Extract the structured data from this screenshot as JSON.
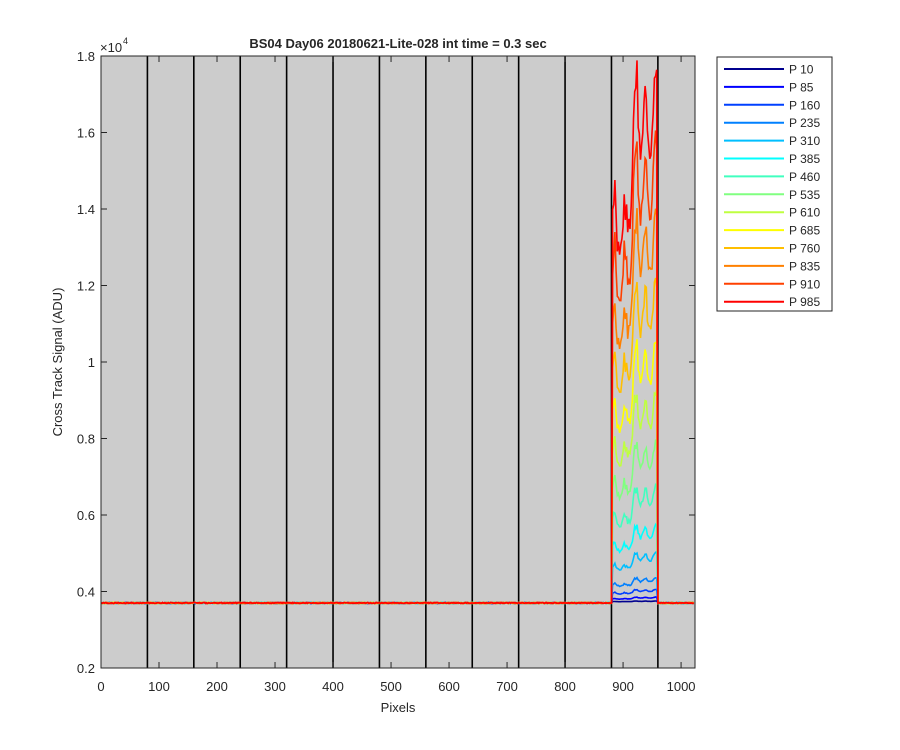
{
  "chart_data": {
    "type": "line",
    "title": "BS04 Day06 20180621-Lite-028 int time = 0.3 sec",
    "xlabel": "Pixels",
    "ylabel": "Cross Track Signal (ADU)",
    "y_exponent_label": "×10",
    "y_exponent_power": "4",
    "xlim": [
      0,
      1024
    ],
    "ylim": [
      2000,
      18000
    ],
    "x_ticks": [
      0,
      100,
      200,
      300,
      400,
      500,
      600,
      700,
      800,
      900,
      1000
    ],
    "x_tick_labels": [
      "0",
      "100",
      "200",
      "300",
      "400",
      "500",
      "600",
      "700",
      "800",
      "900",
      "1000"
    ],
    "y_ticks": [
      2000,
      4000,
      6000,
      8000,
      10000,
      12000,
      14000,
      16000,
      18000
    ],
    "y_tick_labels": [
      "0.2",
      "0.4",
      "0.6",
      "0.8",
      "1",
      "1.2",
      "1.4",
      "1.6",
      "1.8"
    ],
    "plot_background": "#cccccc",
    "legend_position": "outside-top-right",
    "vertical_lines": [
      80,
      160,
      240,
      320,
      400,
      480,
      560,
      640,
      720,
      800,
      880,
      960
    ],
    "vertical_line_color": "#000000",
    "baseline": 3700,
    "signal_start": 880,
    "signal_end": 960,
    "series": [
      {
        "name": "P 10",
        "color": "#00008f",
        "peak": 3750
      },
      {
        "name": "P 85",
        "color": "#0000ff",
        "peak": 3850
      },
      {
        "name": "P 160",
        "color": "#0040ff",
        "peak": 4050
      },
      {
        "name": "P 235",
        "color": "#0080ff",
        "peak": 4350
      },
      {
        "name": "P 310",
        "color": "#00bfff",
        "peak": 5000
      },
      {
        "name": "P 385",
        "color": "#00ffff",
        "peak": 5700
      },
      {
        "name": "P 460",
        "color": "#40ffbf",
        "peak": 6700
      },
      {
        "name": "P 535",
        "color": "#80ff80",
        "peak": 7800
      },
      {
        "name": "P 610",
        "color": "#bfff40",
        "peak": 9100
      },
      {
        "name": "P 685",
        "color": "#ffff00",
        "peak": 10400
      },
      {
        "name": "P 760",
        "color": "#ffbf00",
        "peak": 12000
      },
      {
        "name": "P 835",
        "color": "#ff8000",
        "peak": 13700
      },
      {
        "name": "P 910",
        "color": "#ff4000",
        "peak": 15600
      },
      {
        "name": "P 985",
        "color": "#ff0000",
        "peak": 17400
      }
    ]
  }
}
